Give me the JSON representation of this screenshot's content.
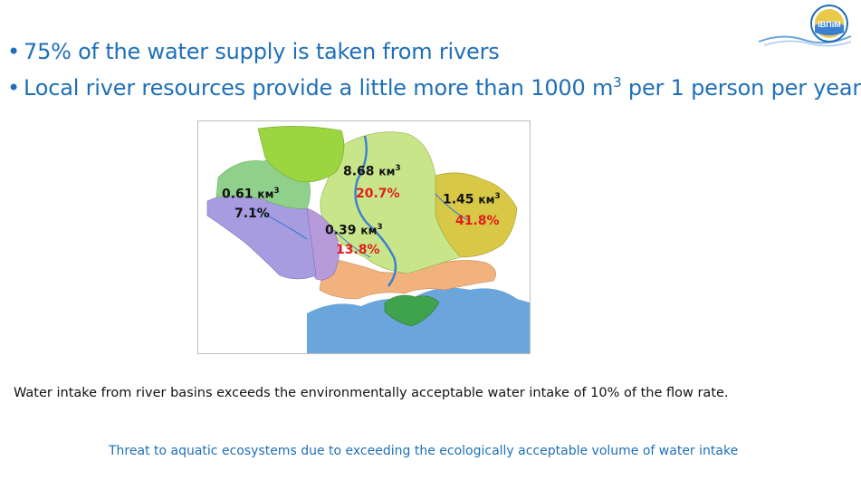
{
  "logo": {
    "text": "ІВПіМ"
  },
  "bullets": [
    {
      "text": "75% of the water supply is taken from rivers"
    },
    {
      "text_before": "Local river resources provide a little more than 1000 m",
      "sup": "3",
      "text_after": " per 1 person per year"
    }
  ],
  "map": {
    "regions": [
      {
        "volume": "0.61",
        "unit": "км",
        "sup": "3",
        "share": "7.1%"
      },
      {
        "volume": "8.68",
        "unit": "км",
        "sup": "3",
        "share": "20.7%"
      },
      {
        "volume": "0.39",
        "unit": "км",
        "sup": "3",
        "share": "13.8%"
      },
      {
        "volume": "1.45",
        "unit": "км",
        "sup": "3",
        "share": "41.8%"
      }
    ],
    "colors": {
      "west": "#8fd18a",
      "north_west": "#9bd640",
      "dnipro": "#c9e58a",
      "east": "#d8c845",
      "south_west": "#b79ad9",
      "danube": "#a89ce0",
      "south": "#f2b27e",
      "sea": "#6aa5dc",
      "crimea": "#3ea34a"
    }
  },
  "note": "Water intake from river basins exceeds the environmentally acceptable water intake of 10% of the flow rate.",
  "threat": "Threat to aquatic ecosystems due to exceeding the ecologically acceptable volume of water intake"
}
